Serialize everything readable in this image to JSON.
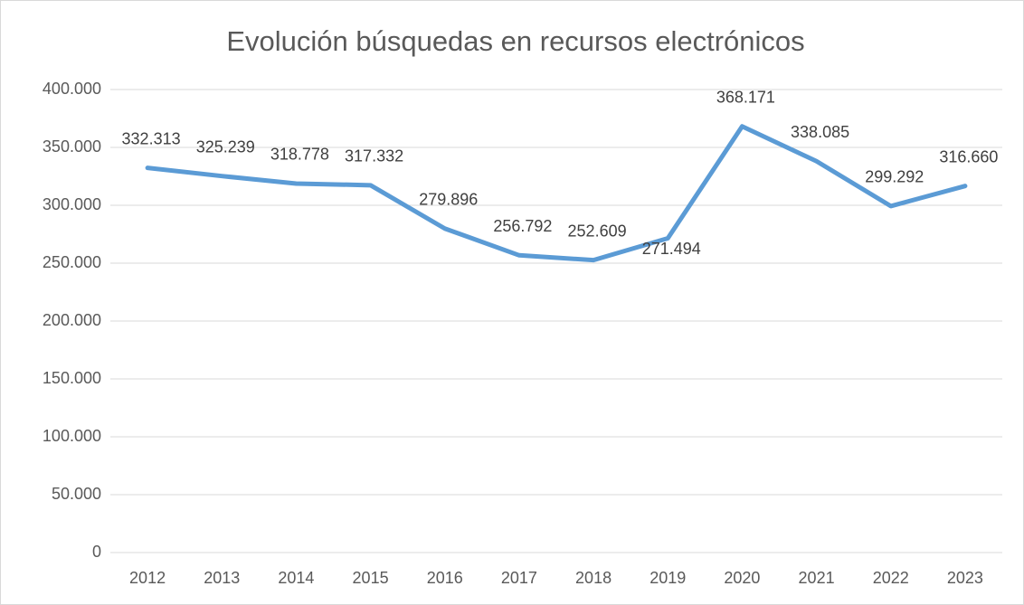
{
  "chart_data": {
    "type": "line",
    "title": "Evolución búsquedas en recursos electrónicos",
    "categories": [
      "2012",
      "2013",
      "2014",
      "2015",
      "2016",
      "2017",
      "2018",
      "2019",
      "2020",
      "2021",
      "2022",
      "2023"
    ],
    "values": [
      332313,
      325239,
      318778,
      317332,
      279896,
      256792,
      252609,
      271494,
      368171,
      338085,
      299292,
      316660
    ],
    "value_labels": [
      "332.313",
      "325.239",
      "318.778",
      "317.332",
      "279.896",
      "256.792",
      "252.609",
      "271.494",
      "368.171",
      "338.085",
      "299.292",
      "316.660"
    ],
    "color": "#5b9bd5",
    "ylim": [
      0,
      400000
    ],
    "yticks": [
      0,
      {
        "value": 50000,
        "label": "50.000"
      },
      {
        "value": 100000,
        "label": "100.000"
      },
      {
        "value": 150000,
        "label": "150.000"
      },
      {
        "value": 200000,
        "label": "200.000"
      },
      {
        "value": 250000,
        "label": "250.000"
      },
      {
        "value": 300000,
        "label": "300.000"
      },
      {
        "value": 350000,
        "label": "350.000"
      },
      {
        "value": 400000,
        "label": "400.000"
      }
    ],
    "grid": true
  }
}
